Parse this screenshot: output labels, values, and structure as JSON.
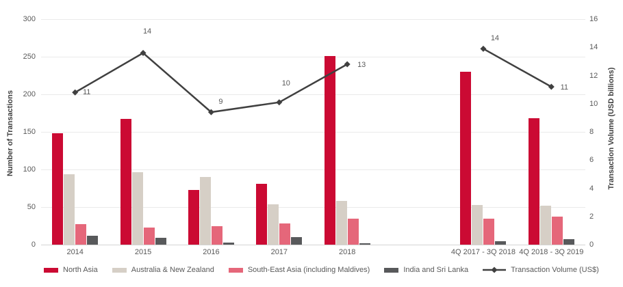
{
  "chart_data": {
    "type": "bar+line",
    "categories": [
      "2014",
      "2015",
      "2016",
      "2017",
      "2018",
      "",
      "4Q 2017 - 3Q 2018",
      "4Q 2018 - 3Q 2019"
    ],
    "series": [
      {
        "name": "North Asia",
        "color": "#cb0a33",
        "values": [
          148,
          167,
          73,
          81,
          251,
          null,
          230,
          168
        ]
      },
      {
        "name": "Australia & New Zealand",
        "color": "#d6cfc6",
        "values": [
          94,
          96,
          90,
          54,
          58,
          null,
          53,
          52
        ]
      },
      {
        "name": "South-East Asia (including Maldives)",
        "color": "#e5677a",
        "values": [
          27,
          23,
          25,
          28,
          35,
          null,
          35,
          37
        ]
      },
      {
        "name": "India and Sri Lanka",
        "color": "#58595b",
        "values": [
          12,
          9,
          3,
          10,
          2,
          null,
          5,
          7
        ]
      }
    ],
    "line": {
      "name": "Transaction Volume (US$)",
      "color": "#404040",
      "values": [
        10.8,
        13.6,
        9.4,
        10.1,
        12.8,
        null,
        13.9,
        11.2
      ],
      "labels": [
        "11",
        "14",
        "9",
        "10",
        "13",
        null,
        "14",
        "11"
      ],
      "label_offsets": [
        [
          17,
          0
        ],
        [
          6,
          -32
        ],
        [
          14,
          -15
        ],
        [
          10,
          -28
        ],
        [
          21,
          1
        ],
        null,
        [
          17,
          -15
        ],
        [
          19,
          1
        ]
      ]
    },
    "left_axis": {
      "title": "Number of Transactions",
      "min": 0,
      "max": 300,
      "ticks": [
        0,
        50,
        100,
        150,
        200,
        250,
        300
      ]
    },
    "right_axis": {
      "title": "Transaction Volume (USD billions)",
      "min": 0,
      "max": 16,
      "ticks": [
        0,
        2,
        4,
        6,
        8,
        10,
        12,
        14,
        16
      ]
    },
    "grid": true,
    "legend_position": "bottom"
  }
}
